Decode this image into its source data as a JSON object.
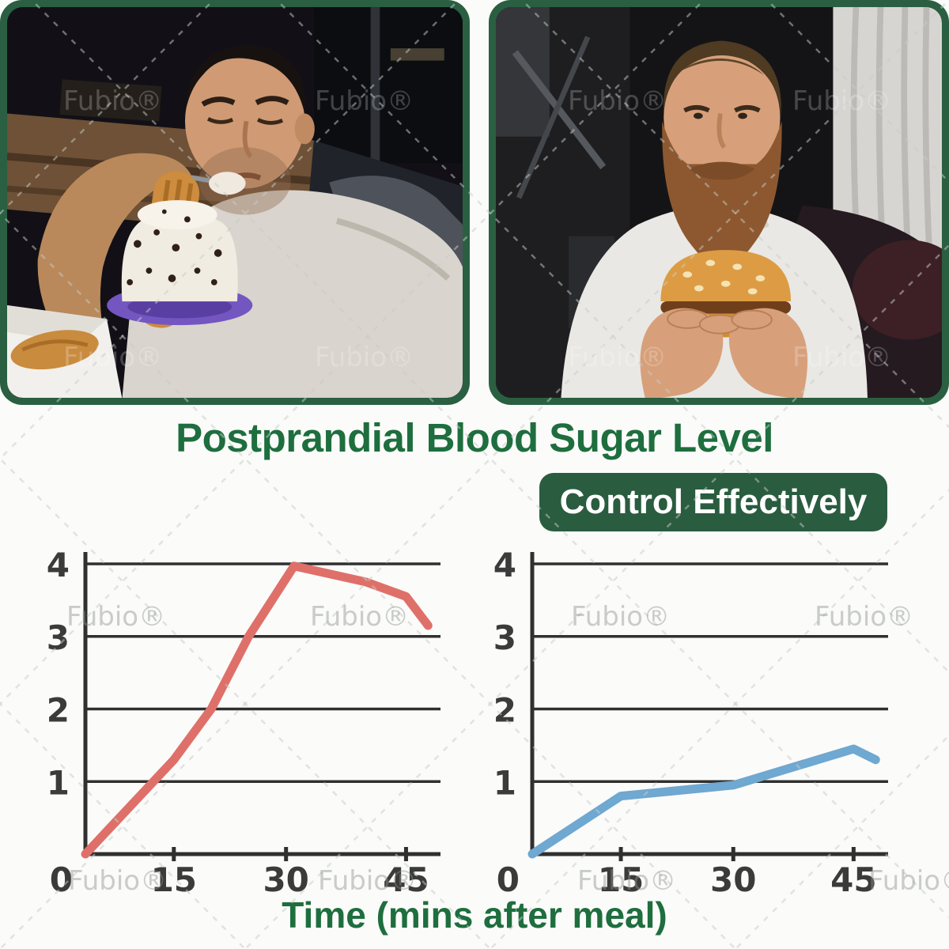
{
  "title": "Postprandial Blood Sugar Level",
  "badge": {
    "label": "Control Effectively"
  },
  "xlabel": "Time (mins after meal)",
  "watermark": {
    "text": "Fubio®"
  },
  "photos": {
    "left": {
      "description": "Overweight man lying on a couch eating cream cake with a spoon while holding a churro pastry"
    },
    "right": {
      "description": "Bearded man in a white t-shirt holding a sesame-bun burger with both hands"
    }
  },
  "colors": {
    "title_green": "#1e6e3e",
    "badge_green": "#2a5c40",
    "frame_green": "#2a5f42",
    "axis": "#303030",
    "red_line": "#df7069",
    "blue_line": "#6fa8d0"
  },
  "chart_data": [
    {
      "type": "line",
      "position": "left",
      "line_color": "#df7069",
      "x": [
        0,
        15,
        20,
        25,
        31,
        40,
        45,
        50
      ],
      "y": [
        0,
        1.3,
        2.0,
        3.0,
        3.97,
        3.75,
        3.55,
        3.15
      ],
      "xticks": [
        0,
        15,
        30,
        45
      ],
      "yticks": [
        0,
        1,
        2,
        3,
        4
      ],
      "xlim": [
        0,
        50
      ],
      "ylim": [
        0,
        4.1
      ],
      "grid": "horizontal",
      "xlabel": "Time (mins after meal)"
    },
    {
      "type": "line",
      "position": "right",
      "line_color": "#6fa8d0",
      "x": [
        0,
        15,
        30,
        45,
        50
      ],
      "y": [
        0,
        0.8,
        0.95,
        1.45,
        1.3
      ],
      "xticks": [
        0,
        15,
        30,
        45
      ],
      "yticks": [
        0,
        1,
        2,
        3,
        4
      ],
      "xlim": [
        0,
        50
      ],
      "ylim": [
        0,
        4.1
      ],
      "grid": "horizontal",
      "xlabel": "Time (mins after meal)"
    }
  ]
}
